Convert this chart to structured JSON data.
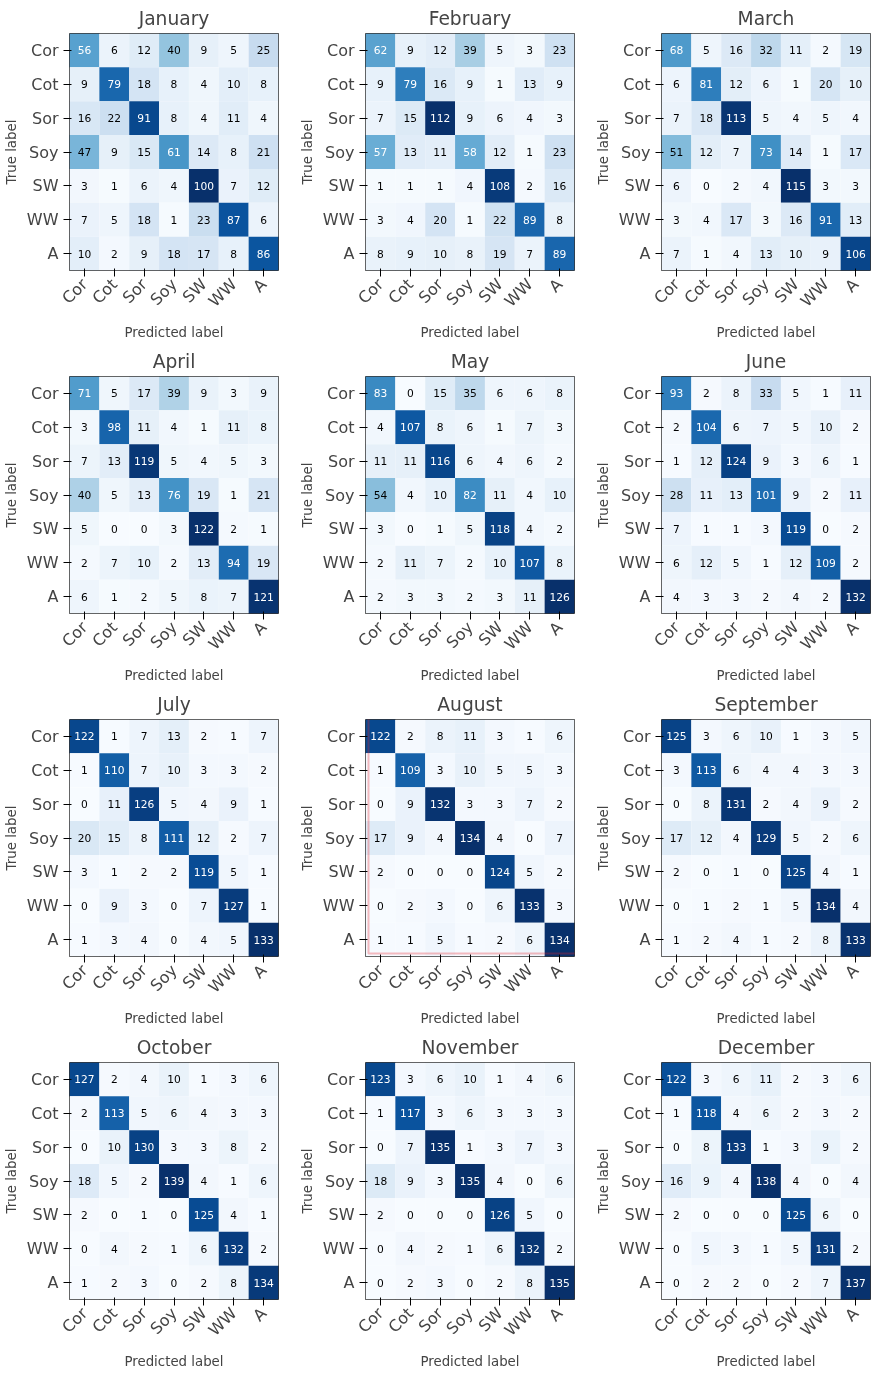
{
  "chart_data": [
    {
      "type": "heatmap",
      "title": "January",
      "xlabel": "Predicted label",
      "ylabel": "True label",
      "data_labels": true,
      "categories": [
        "Cor",
        "Cot",
        "Sor",
        "Soy",
        "SW",
        "WW",
        "A"
      ],
      "y_categories": [
        "Cor",
        "Cot",
        "Sor",
        "Soy",
        "SW",
        "WW",
        "A"
      ],
      "cells": [
        [
          56,
          6,
          12,
          40,
          9,
          5,
          25
        ],
        [
          9,
          79,
          18,
          8,
          4,
          10,
          8
        ],
        [
          16,
          22,
          91,
          8,
          4,
          11,
          4
        ],
        [
          47,
          9,
          15,
          61,
          14,
          8,
          21
        ],
        [
          3,
          1,
          6,
          4,
          100,
          7,
          12
        ],
        [
          7,
          5,
          18,
          1,
          23,
          87,
          6
        ],
        [
          10,
          2,
          9,
          18,
          17,
          8,
          86
        ]
      ]
    },
    {
      "type": "heatmap",
      "title": "February",
      "xlabel": "Predicted label",
      "ylabel": "True label",
      "data_labels": true,
      "categories": [
        "Cor",
        "Cot",
        "Sor",
        "Soy",
        "SW",
        "WW",
        "A"
      ],
      "y_categories": [
        "Cor",
        "Cot",
        "Sor",
        "Soy",
        "SW",
        "WW",
        "A"
      ],
      "cells": [
        [
          62,
          9,
          12,
          39,
          5,
          3,
          23
        ],
        [
          9,
          79,
          16,
          9,
          1,
          13,
          9
        ],
        [
          7,
          15,
          112,
          9,
          6,
          4,
          3
        ],
        [
          57,
          13,
          11,
          58,
          12,
          1,
          23
        ],
        [
          1,
          1,
          1,
          4,
          108,
          2,
          16
        ],
        [
          3,
          4,
          20,
          1,
          22,
          89,
          8
        ],
        [
          8,
          9,
          10,
          8,
          19,
          7,
          89
        ]
      ]
    },
    {
      "type": "heatmap",
      "title": "March",
      "xlabel": "Predicted label",
      "ylabel": "True label",
      "data_labels": true,
      "categories": [
        "Cor",
        "Cot",
        "Sor",
        "Soy",
        "SW",
        "WW",
        "A"
      ],
      "y_categories": [
        "Cor",
        "Cot",
        "Sor",
        "Soy",
        "SW",
        "WW",
        "A"
      ],
      "cells": [
        [
          68,
          5,
          16,
          32,
          11,
          2,
          19
        ],
        [
          6,
          81,
          12,
          6,
          1,
          20,
          10
        ],
        [
          7,
          18,
          113,
          5,
          4,
          5,
          4
        ],
        [
          51,
          12,
          7,
          73,
          14,
          1,
          17
        ],
        [
          6,
          0,
          2,
          4,
          115,
          3,
          3
        ],
        [
          3,
          4,
          17,
          3,
          16,
          91,
          13
        ],
        [
          7,
          1,
          4,
          13,
          10,
          9,
          106
        ]
      ]
    },
    {
      "type": "heatmap",
      "title": "April",
      "xlabel": "Predicted label",
      "ylabel": "True label",
      "data_labels": true,
      "categories": [
        "Cor",
        "Cot",
        "Sor",
        "Soy",
        "SW",
        "WW",
        "A"
      ],
      "y_categories": [
        "Cor",
        "Cot",
        "Sor",
        "Soy",
        "SW",
        "WW",
        "A"
      ],
      "cells": [
        [
          71,
          5,
          17,
          39,
          9,
          3,
          9
        ],
        [
          3,
          98,
          11,
          4,
          1,
          11,
          8
        ],
        [
          7,
          13,
          119,
          5,
          4,
          5,
          3
        ],
        [
          40,
          5,
          13,
          76,
          19,
          1,
          21
        ],
        [
          5,
          0,
          0,
          3,
          122,
          2,
          1
        ],
        [
          2,
          7,
          10,
          2,
          13,
          94,
          19
        ],
        [
          6,
          1,
          2,
          5,
          8,
          7,
          121
        ]
      ]
    },
    {
      "type": "heatmap",
      "title": "May",
      "xlabel": "Predicted label",
      "ylabel": "True label",
      "data_labels": true,
      "categories": [
        "Cor",
        "Cot",
        "Sor",
        "Soy",
        "SW",
        "WW",
        "A"
      ],
      "y_categories": [
        "Cor",
        "Cot",
        "Sor",
        "Soy",
        "SW",
        "WW",
        "A"
      ],
      "cells": [
        [
          83,
          0,
          15,
          35,
          6,
          6,
          8
        ],
        [
          4,
          107,
          8,
          6,
          1,
          7,
          3
        ],
        [
          11,
          11,
          116,
          6,
          4,
          6,
          2
        ],
        [
          54,
          4,
          10,
          82,
          11,
          4,
          10
        ],
        [
          3,
          0,
          1,
          5,
          118,
          4,
          2
        ],
        [
          2,
          11,
          7,
          2,
          10,
          107,
          8
        ],
        [
          2,
          3,
          3,
          2,
          3,
          11,
          126
        ]
      ]
    },
    {
      "type": "heatmap",
      "title": "June",
      "xlabel": "Predicted label",
      "ylabel": "True label",
      "data_labels": true,
      "categories": [
        "Cor",
        "Cot",
        "Sor",
        "Soy",
        "SW",
        "WW",
        "A"
      ],
      "y_categories": [
        "Cor",
        "Cot",
        "Sor",
        "Soy",
        "SW",
        "WW",
        "A"
      ],
      "cells": [
        [
          93,
          2,
          8,
          33,
          5,
          1,
          11
        ],
        [
          2,
          104,
          6,
          7,
          5,
          10,
          2
        ],
        [
          1,
          12,
          124,
          9,
          3,
          6,
          1
        ],
        [
          28,
          11,
          13,
          101,
          9,
          2,
          11
        ],
        [
          7,
          1,
          1,
          3,
          119,
          0,
          2
        ],
        [
          6,
          12,
          5,
          1,
          12,
          109,
          2
        ],
        [
          4,
          3,
          3,
          2,
          4,
          2,
          132
        ]
      ]
    },
    {
      "type": "heatmap",
      "title": "July",
      "xlabel": "Predicted label",
      "ylabel": "True label",
      "data_labels": true,
      "categories": [
        "Cor",
        "Cot",
        "Sor",
        "Soy",
        "SW",
        "WW",
        "A"
      ],
      "y_categories": [
        "Cor",
        "Cot",
        "Sor",
        "Soy",
        "SW",
        "WW",
        "A"
      ],
      "cells": [
        [
          122,
          1,
          7,
          13,
          2,
          1,
          7
        ],
        [
          1,
          110,
          7,
          10,
          3,
          3,
          2
        ],
        [
          0,
          11,
          126,
          5,
          4,
          9,
          1
        ],
        [
          20,
          15,
          8,
          111,
          12,
          2,
          7
        ],
        [
          3,
          1,
          2,
          2,
          119,
          5,
          1
        ],
        [
          0,
          9,
          3,
          0,
          7,
          127,
          1
        ],
        [
          1,
          3,
          4,
          0,
          4,
          5,
          133
        ]
      ]
    },
    {
      "type": "heatmap",
      "title": "August",
      "xlabel": "Predicted label",
      "ylabel": "True label",
      "data_labels": true,
      "color": "#e8262b",
      "categories": [
        "Cor",
        "Cot",
        "Sor",
        "Soy",
        "SW",
        "WW",
        "A"
      ],
      "y_categories": [
        "Cor",
        "Cot",
        "Sor",
        "Soy",
        "SW",
        "WW",
        "A"
      ],
      "cells": [
        [
          122,
          2,
          8,
          11,
          3,
          1,
          6
        ],
        [
          1,
          109,
          3,
          10,
          5,
          5,
          3
        ],
        [
          0,
          9,
          132,
          3,
          3,
          7,
          2
        ],
        [
          17,
          9,
          4,
          134,
          4,
          0,
          7
        ],
        [
          2,
          0,
          0,
          0,
          124,
          5,
          2
        ],
        [
          0,
          2,
          3,
          0,
          6,
          133,
          3
        ],
        [
          1,
          1,
          5,
          1,
          2,
          6,
          134
        ]
      ]
    },
    {
      "type": "heatmap",
      "title": "September",
      "xlabel": "Predicted label",
      "ylabel": "True label",
      "data_labels": true,
      "categories": [
        "Cor",
        "Cot",
        "Sor",
        "Soy",
        "SW",
        "WW",
        "A"
      ],
      "y_categories": [
        "Cor",
        "Cot",
        "Sor",
        "Soy",
        "SW",
        "WW",
        "A"
      ],
      "cells": [
        [
          125,
          3,
          6,
          10,
          1,
          3,
          5
        ],
        [
          3,
          113,
          6,
          4,
          4,
          3,
          3
        ],
        [
          0,
          8,
          131,
          2,
          4,
          9,
          2
        ],
        [
          17,
          12,
          4,
          129,
          5,
          2,
          6
        ],
        [
          2,
          0,
          1,
          0,
          125,
          4,
          1
        ],
        [
          0,
          1,
          2,
          1,
          5,
          134,
          4
        ],
        [
          1,
          2,
          4,
          1,
          2,
          8,
          133
        ]
      ]
    },
    {
      "type": "heatmap",
      "title": "October",
      "xlabel": "Predicted label",
      "ylabel": "True label",
      "data_labels": true,
      "categories": [
        "Cor",
        "Cot",
        "Sor",
        "Soy",
        "SW",
        "WW",
        "A"
      ],
      "y_categories": [
        "Cor",
        "Cot",
        "Sor",
        "Soy",
        "SW",
        "WW",
        "A"
      ],
      "cells": [
        [
          127,
          2,
          4,
          10,
          1,
          3,
          6
        ],
        [
          2,
          113,
          5,
          6,
          4,
          3,
          3
        ],
        [
          0,
          10,
          130,
          3,
          3,
          8,
          2
        ],
        [
          18,
          5,
          2,
          139,
          4,
          1,
          6
        ],
        [
          2,
          0,
          1,
          0,
          125,
          4,
          1
        ],
        [
          0,
          4,
          2,
          1,
          6,
          132,
          2
        ],
        [
          1,
          2,
          3,
          0,
          2,
          8,
          134
        ]
      ]
    },
    {
      "type": "heatmap",
      "title": "November",
      "xlabel": "Predicted label",
      "ylabel": "True label",
      "data_labels": true,
      "categories": [
        "Cor",
        "Cot",
        "Sor",
        "Soy",
        "SW",
        "WW",
        "A"
      ],
      "y_categories": [
        "Cor",
        "Cot",
        "Sor",
        "Soy",
        "SW",
        "WW",
        "A"
      ],
      "cells": [
        [
          123,
          3,
          6,
          10,
          1,
          4,
          6
        ],
        [
          1,
          117,
          3,
          6,
          3,
          3,
          3
        ],
        [
          0,
          7,
          135,
          1,
          3,
          7,
          3
        ],
        [
          18,
          9,
          3,
          135,
          4,
          0,
          6
        ],
        [
          2,
          0,
          0,
          0,
          126,
          5,
          0
        ],
        [
          0,
          4,
          2,
          1,
          6,
          132,
          2
        ],
        [
          0,
          2,
          3,
          0,
          2,
          8,
          135
        ]
      ]
    },
    {
      "type": "heatmap",
      "title": "December",
      "xlabel": "Predicted label",
      "ylabel": "True label",
      "data_labels": true,
      "categories": [
        "Cor",
        "Cot",
        "Sor",
        "Soy",
        "SW",
        "WW",
        "A"
      ],
      "y_categories": [
        "Cor",
        "Cot",
        "Sor",
        "Soy",
        "SW",
        "WW",
        "A"
      ],
      "cells": [
        [
          122,
          3,
          6,
          11,
          2,
          3,
          6
        ],
        [
          1,
          118,
          4,
          6,
          2,
          3,
          2
        ],
        [
          0,
          8,
          133,
          1,
          3,
          9,
          2
        ],
        [
          16,
          9,
          4,
          138,
          4,
          0,
          4
        ],
        [
          2,
          0,
          0,
          0,
          125,
          6,
          0
        ],
        [
          0,
          5,
          3,
          1,
          5,
          131,
          2
        ],
        [
          0,
          2,
          2,
          0,
          2,
          7,
          137
        ]
      ]
    }
  ]
}
